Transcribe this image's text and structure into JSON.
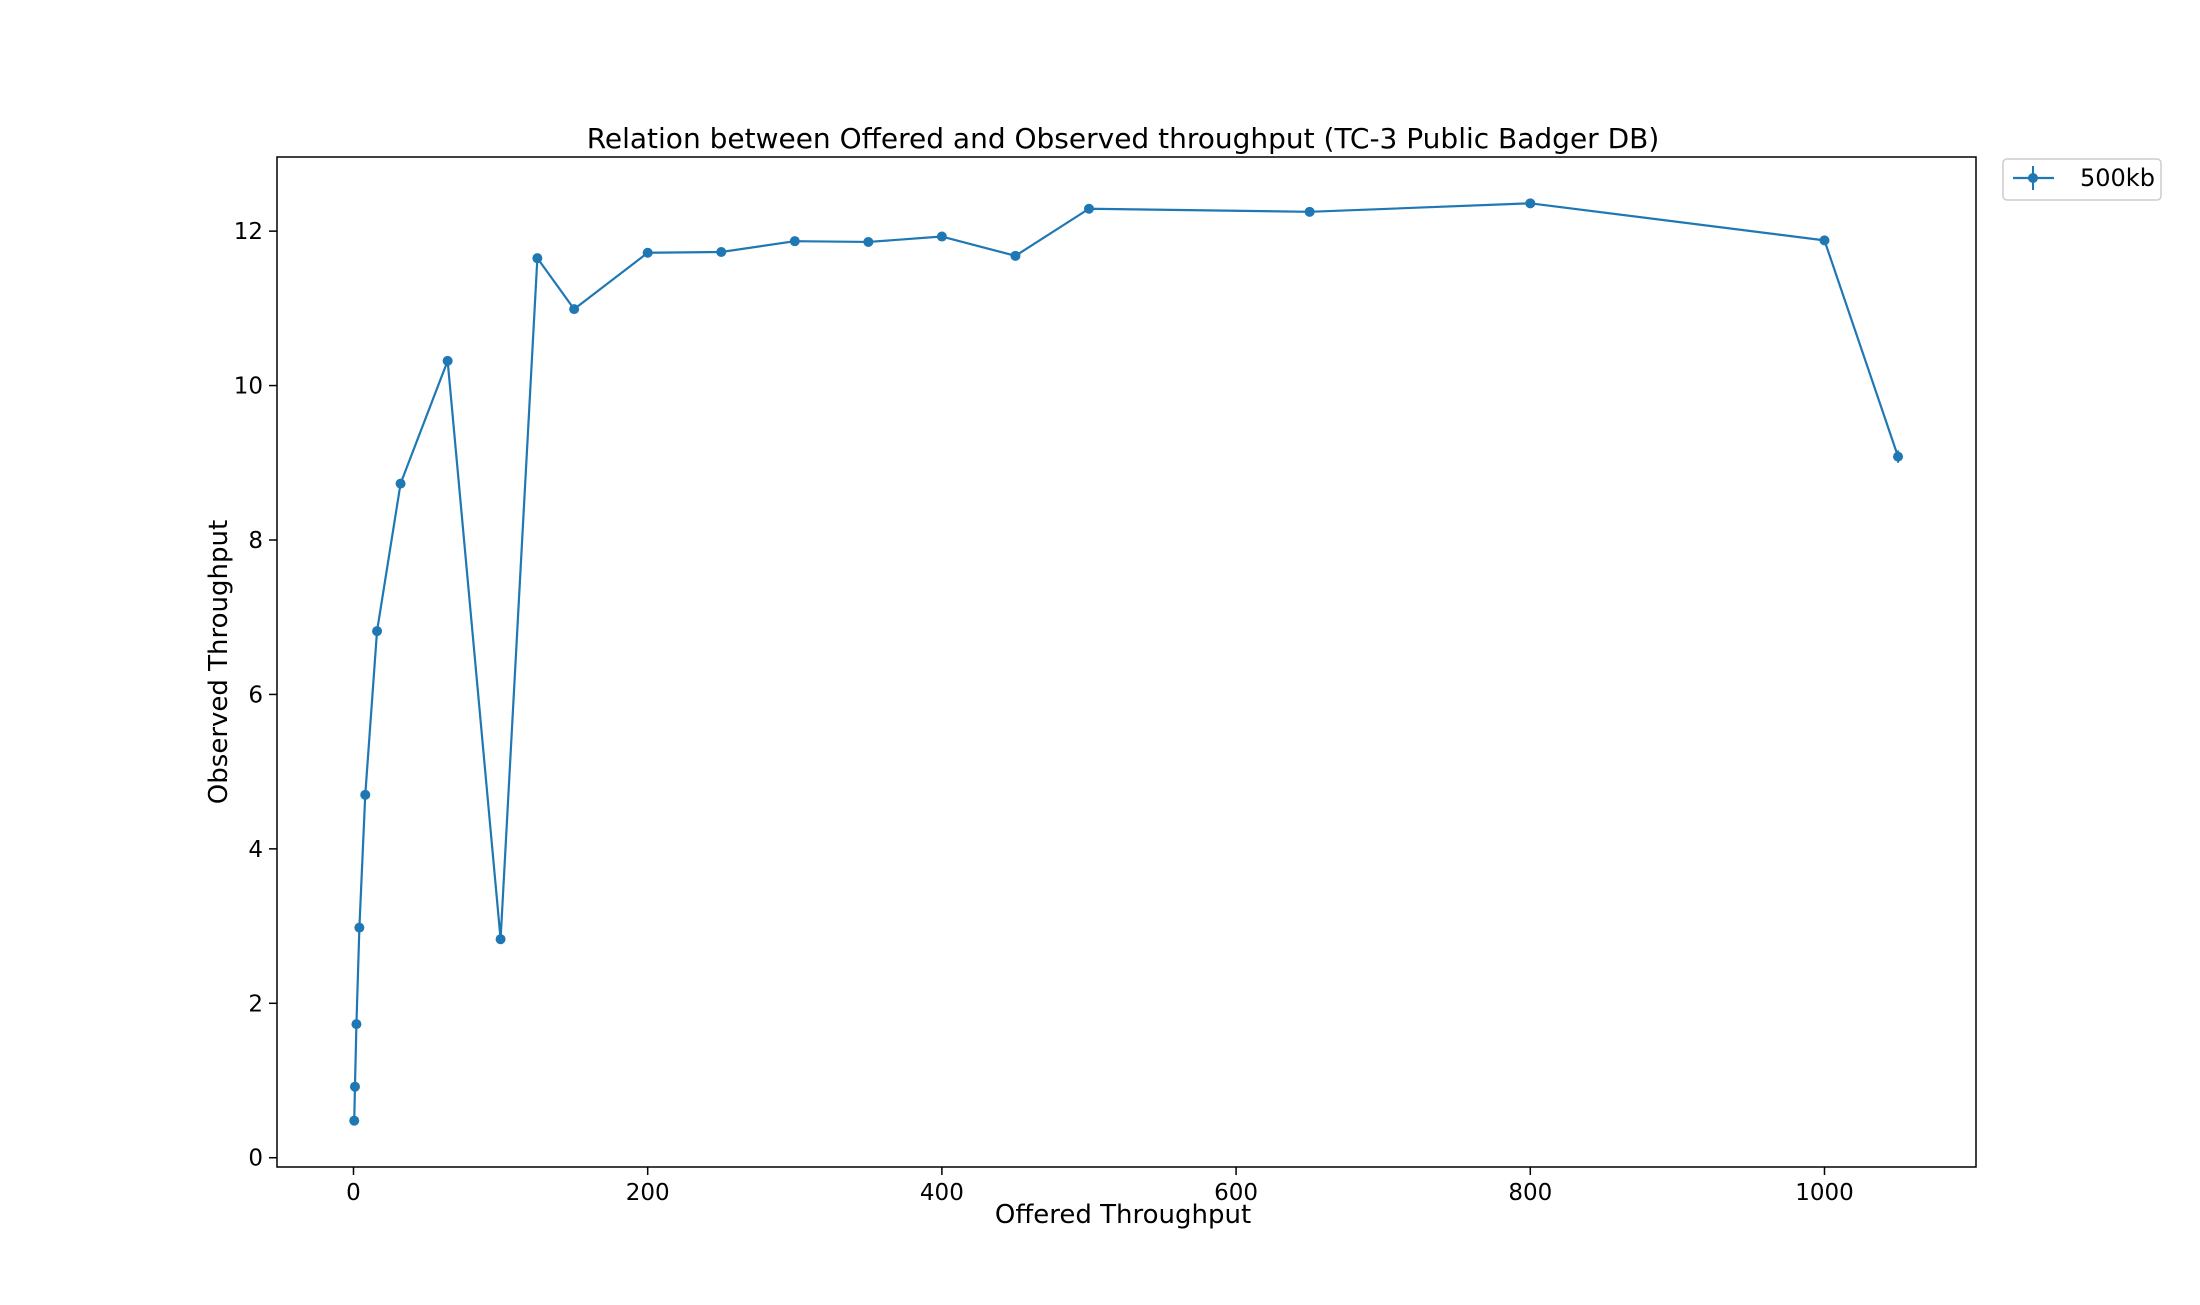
{
  "chart_data": {
    "type": "line",
    "title": "Relation between Offered and Observed throughput (TC-3  Public Badger DB)",
    "xlabel": "Offered Throughput",
    "ylabel": "Observed Throughput",
    "xlim": [
      -52,
      1103
    ],
    "ylim": [
      -0.12,
      12.96
    ],
    "xticks": [
      0,
      200,
      400,
      600,
      800,
      1000
    ],
    "yticks": [
      0,
      2,
      4,
      6,
      8,
      10,
      12
    ],
    "grid": false,
    "legend_position": "upper-right, outside plot",
    "series": [
      {
        "name": "500kb",
        "color": "#1f77b4",
        "marker": "circle",
        "x": [
          0.5,
          1,
          2,
          4,
          8,
          16,
          32,
          64,
          100,
          125,
          150,
          200,
          250,
          300,
          350,
          400,
          450,
          500,
          650,
          800,
          1000,
          1050
        ],
        "y": [
          0.48,
          0.92,
          1.73,
          2.98,
          4.7,
          6.82,
          8.73,
          10.32,
          2.83,
          11.65,
          10.99,
          11.72,
          11.73,
          11.87,
          11.86,
          11.93,
          11.68,
          12.29,
          12.25,
          12.36,
          11.88,
          9.08
        ],
        "yerr": [
          0,
          0,
          0,
          0,
          0,
          0,
          0,
          0,
          0,
          0,
          0,
          0,
          0,
          0,
          0,
          0,
          0,
          0,
          0,
          0,
          0,
          0.08
        ]
      }
    ]
  }
}
